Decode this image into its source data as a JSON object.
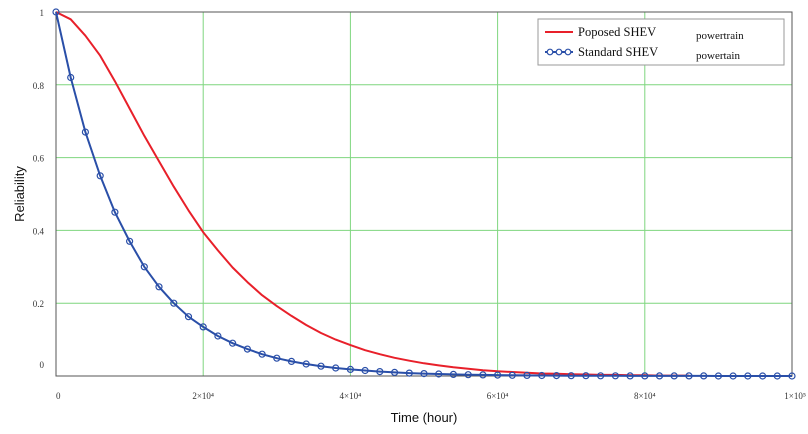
{
  "chart_data": {
    "type": "line",
    "xlabel": "Time (hour)",
    "ylabel": "Reliability",
    "xlim": [
      0,
      100000
    ],
    "ylim": [
      0,
      1
    ],
    "grid": true,
    "legend_position": "top-right",
    "x_ticks": [
      {
        "value": 0,
        "label": "0"
      },
      {
        "value": 20000,
        "label": "2×10⁴"
      },
      {
        "value": 40000,
        "label": "4×10⁴"
      },
      {
        "value": 60000,
        "label": "6×10⁴"
      },
      {
        "value": 80000,
        "label": "8×10⁴"
      },
      {
        "value": 100000,
        "label": "1×10⁵"
      }
    ],
    "y_ticks": [
      {
        "value": 0,
        "label": "0"
      },
      {
        "value": 0.2,
        "label": "0.2"
      },
      {
        "value": 0.4,
        "label": "0.4"
      },
      {
        "value": 0.6,
        "label": "0.6"
      },
      {
        "value": 0.8,
        "label": "0.8"
      },
      {
        "value": 1,
        "label": "1"
      }
    ],
    "series": [
      {
        "name": "Poposed SHEV",
        "name_suffix": "powertrain",
        "color": "#e8202a",
        "marker": "none",
        "x": [
          0,
          2000,
          4000,
          6000,
          8000,
          10000,
          12000,
          14000,
          16000,
          18000,
          20000,
          22000,
          24000,
          26000,
          28000,
          30000,
          32000,
          34000,
          36000,
          38000,
          40000,
          42000,
          44000,
          46000,
          48000,
          50000,
          52000,
          54000,
          56000,
          58000,
          60000,
          62000,
          64000,
          66000,
          68000,
          70000,
          72000,
          74000,
          76000,
          78000,
          80000,
          82000,
          84000,
          86000
        ],
        "values": [
          1.0,
          0.98,
          0.935,
          0.88,
          0.81,
          0.735,
          0.66,
          0.59,
          0.52,
          0.455,
          0.395,
          0.345,
          0.298,
          0.258,
          0.222,
          0.192,
          0.165,
          0.14,
          0.118,
          0.1,
          0.085,
          0.071,
          0.06,
          0.05,
          0.042,
          0.035,
          0.029,
          0.024,
          0.02,
          0.016,
          0.013,
          0.011,
          0.009,
          0.007,
          0.006,
          0.005,
          0.004,
          0.003,
          0.003,
          0.002,
          0.002,
          0.001,
          0.001,
          0.001
        ]
      },
      {
        "name": "Standard SHEV",
        "name_suffix": "powertain",
        "color": "#2a4fa8",
        "marker": "circle",
        "x": [
          0,
          2000,
          4000,
          6000,
          8000,
          10000,
          12000,
          14000,
          16000,
          18000,
          20000,
          22000,
          24000,
          26000,
          28000,
          30000,
          32000,
          34000,
          36000,
          38000,
          40000,
          42000,
          44000,
          46000,
          48000,
          50000,
          52000,
          54000,
          56000,
          58000,
          60000,
          62000,
          64000,
          66000,
          68000,
          70000,
          72000,
          74000,
          76000,
          78000,
          80000,
          82000,
          84000,
          86000,
          88000,
          90000,
          92000,
          94000,
          96000,
          98000,
          100000
        ],
        "values": [
          1.0,
          0.82,
          0.67,
          0.55,
          0.45,
          0.37,
          0.3,
          0.245,
          0.2,
          0.163,
          0.135,
          0.11,
          0.09,
          0.074,
          0.06,
          0.049,
          0.04,
          0.033,
          0.027,
          0.022,
          0.018,
          0.015,
          0.012,
          0.01,
          0.008,
          0.0066,
          0.0054,
          0.0044,
          0.0036,
          0.003,
          0.0024,
          0.002,
          0.0016,
          0.0013,
          0.0011,
          0.0009,
          0.0007,
          0.0006,
          0.0005,
          0.0004,
          0.0003,
          0.0003,
          0.0002,
          0.0002,
          0.0002,
          0.0001,
          0.0001,
          0.0001,
          0.0001,
          0.0001,
          0.0001
        ]
      }
    ]
  }
}
